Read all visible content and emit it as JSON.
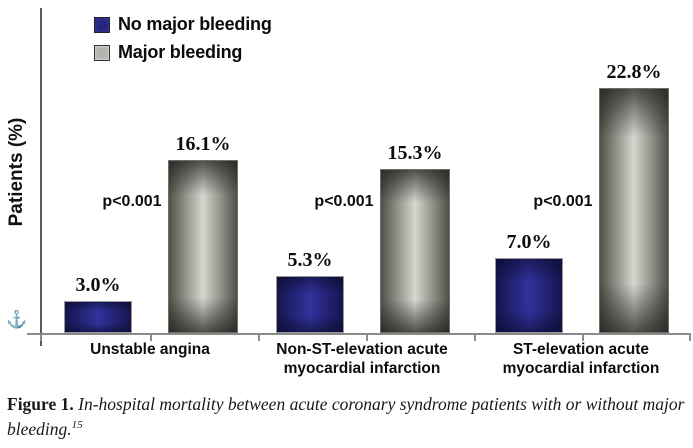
{
  "figure": {
    "caption_label": "Figure 1.",
    "caption_text": "In-hospital mortality between acute coronary syndrome patients with or without major bleeding.",
    "caption_superscript": "15"
  },
  "chart_data": {
    "type": "bar",
    "title": "",
    "xlabel": "",
    "ylabel": "Patients (%)",
    "ylim": [
      0,
      25
    ],
    "grid": false,
    "legend_position": "top-left",
    "categories": [
      "Unstable angina",
      "Non-ST-elevation acute\nmyocardial infarction",
      "ST-elevation acute\nmyocardial infarction"
    ],
    "series": [
      {
        "name": "No major bleeding",
        "color": "#26267d",
        "values": [
          3.0,
          5.3,
          7.0
        ],
        "labels": [
          "3.0%",
          "5.3%",
          "7.0%"
        ]
      },
      {
        "name": "Major bleeding",
        "color": "#9a9a94",
        "values": [
          16.1,
          15.3,
          22.8
        ],
        "labels": [
          "16.1%",
          "15.3%",
          "22.8%"
        ]
      }
    ],
    "annotations": [
      "p<0.001",
      "p<0.001",
      "p<0.001"
    ]
  },
  "colors": {
    "no_major_bleeding_fill": "#26267d",
    "no_major_bleeding_edge": "#15154d",
    "major_bleeding_light": "#d7d7d0",
    "major_bleeding_dark": "#504f48",
    "axis": "#8a8a8a",
    "text": "#0d0d0d"
  },
  "icons": {
    "anchor": "⚓"
  }
}
